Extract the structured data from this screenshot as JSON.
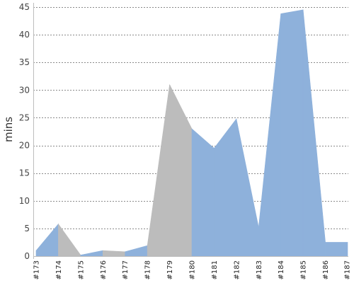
{
  "chart_data": {
    "type": "area",
    "title": "",
    "xlabel": "",
    "ylabel": "mins",
    "ylim": [
      0,
      45
    ],
    "yticks": [
      0,
      5,
      10,
      15,
      20,
      25,
      30,
      35,
      40,
      45
    ],
    "grid": true,
    "categories": [
      "#173",
      "#174",
      "#175",
      "#176",
      "#177",
      "#178",
      "#179",
      "#180",
      "#181",
      "#182",
      "#183",
      "#184",
      "#185",
      "#186",
      "#187"
    ],
    "values": [
      1,
      5.8,
      0.2,
      1,
      0.8,
      1.9,
      31,
      23,
      19.5,
      24.8,
      5.2,
      43.8,
      44.5,
      2.5,
      2.5
    ],
    "segment_colors": [
      "#8eb1db",
      "#bcbcbc",
      "#8eb1db",
      "#bcbcbc",
      "#8eb1db",
      "#bcbcbc",
      "#bcbcbc",
      "#8eb1db",
      "#8eb1db",
      "#8eb1db",
      "#8eb1db",
      "#8eb1db",
      "#8eb1db",
      "#8eb1db"
    ]
  }
}
